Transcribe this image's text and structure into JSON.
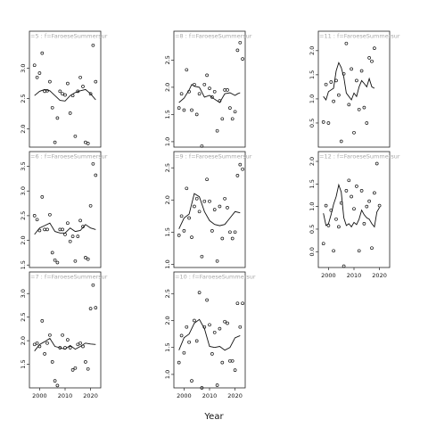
{
  "figure": {
    "xlabel": "Year"
  },
  "chart_data": [
    {
      "type": "scatter",
      "strip": "=5 : f=FaroeseSummersur",
      "panel_index": 0,
      "ylim": [
        1.7,
        3.45
      ],
      "yticks": [
        2.0,
        2.5,
        3.0
      ],
      "xlim": [
        1996,
        2024
      ],
      "show_xaxis": false,
      "points": [
        [
          1998,
          3.05
        ],
        [
          1999,
          2.85
        ],
        [
          2000,
          2.92
        ],
        [
          2001,
          3.25
        ],
        [
          2002,
          2.62
        ],
        [
          2003,
          2.63
        ],
        [
          2004,
          2.78
        ],
        [
          2005,
          2.35
        ],
        [
          2006,
          1.78
        ],
        [
          2007,
          2.18
        ],
        [
          2008,
          2.62
        ],
        [
          2009,
          2.58
        ],
        [
          2010,
          2.56
        ],
        [
          2011,
          2.75
        ],
        [
          2012,
          2.26
        ],
        [
          2013,
          2.55
        ],
        [
          2014,
          1.88
        ],
        [
          2015,
          2.62
        ],
        [
          2016,
          2.85
        ],
        [
          2017,
          2.7
        ],
        [
          2018,
          1.78
        ],
        [
          2019,
          1.76
        ],
        [
          2020,
          2.58
        ],
        [
          2021,
          3.38
        ],
        [
          2022,
          2.78
        ]
      ],
      "line": [
        [
          1998,
          2.55
        ],
        [
          2000,
          2.62
        ],
        [
          2002,
          2.65
        ],
        [
          2004,
          2.63
        ],
        [
          2006,
          2.55
        ],
        [
          2008,
          2.47
        ],
        [
          2010,
          2.46
        ],
        [
          2012,
          2.55
        ],
        [
          2014,
          2.6
        ],
        [
          2016,
          2.63
        ],
        [
          2018,
          2.65
        ],
        [
          2020,
          2.58
        ],
        [
          2022,
          2.48
        ]
      ]
    },
    {
      "type": "scatter",
      "strip": "=6 : f=FaroeseSummersur",
      "panel_index": 1,
      "ylim": [
        1.45,
        3.6
      ],
      "yticks": [
        1.5,
        2.0,
        2.5,
        3.0,
        3.5
      ],
      "xlim": [
        1996,
        2024
      ],
      "show_xaxis": false,
      "points": [
        [
          1998,
          2.5
        ],
        [
          1999,
          2.42
        ],
        [
          2000,
          2.2
        ],
        [
          2001,
          2.88
        ],
        [
          2002,
          2.22
        ],
        [
          2003,
          2.22
        ],
        [
          2004,
          2.52
        ],
        [
          2005,
          1.75
        ],
        [
          2006,
          1.6
        ],
        [
          2007,
          1.55
        ],
        [
          2008,
          2.22
        ],
        [
          2009,
          2.22
        ],
        [
          2010,
          2.12
        ],
        [
          2011,
          2.35
        ],
        [
          2012,
          1.98
        ],
        [
          2013,
          2.08
        ],
        [
          2014,
          1.58
        ],
        [
          2015,
          2.08
        ],
        [
          2016,
          2.4
        ],
        [
          2017,
          2.28
        ],
        [
          2018,
          1.65
        ],
        [
          2019,
          1.62
        ],
        [
          2020,
          2.7
        ],
        [
          2021,
          3.55
        ],
        [
          2022,
          3.32
        ]
      ],
      "line": [
        [
          1998,
          2.12
        ],
        [
          2000,
          2.25
        ],
        [
          2002,
          2.3
        ],
        [
          2004,
          2.35
        ],
        [
          2006,
          2.18
        ],
        [
          2008,
          2.15
        ],
        [
          2010,
          2.15
        ],
        [
          2012,
          2.25
        ],
        [
          2014,
          2.18
        ],
        [
          2016,
          2.2
        ],
        [
          2018,
          2.32
        ],
        [
          2020,
          2.25
        ],
        [
          2022,
          2.22
        ]
      ]
    },
    {
      "type": "scatter",
      "strip": "=7 : f=FaroeseSummersur",
      "panel_index": 2,
      "ylim": [
        1.0,
        3.25
      ],
      "yticks": [
        1.5,
        2.0,
        2.5,
        3.0
      ],
      "xlim": [
        1996,
        2024
      ],
      "show_xaxis": true,
      "points": [
        [
          1998,
          1.92
        ],
        [
          1999,
          1.95
        ],
        [
          2000,
          1.88
        ],
        [
          2001,
          2.42
        ],
        [
          2002,
          1.72
        ],
        [
          2003,
          1.95
        ],
        [
          2004,
          2.12
        ],
        [
          2005,
          1.55
        ],
        [
          2006,
          1.15
        ],
        [
          2007,
          1.05
        ],
        [
          2008,
          1.85
        ],
        [
          2009,
          2.12
        ],
        [
          2010,
          1.85
        ],
        [
          2011,
          2.02
        ],
        [
          2012,
          1.85
        ],
        [
          2013,
          1.38
        ],
        [
          2014,
          1.42
        ],
        [
          2015,
          1.92
        ],
        [
          2016,
          1.95
        ],
        [
          2017,
          1.88
        ],
        [
          2018,
          1.55
        ],
        [
          2019,
          1.4
        ],
        [
          2020,
          2.68
        ],
        [
          2021,
          3.18
        ],
        [
          2022,
          2.7
        ]
      ],
      "line": [
        [
          1998,
          1.78
        ],
        [
          2000,
          1.92
        ],
        [
          2002,
          1.98
        ],
        [
          2004,
          2.05
        ],
        [
          2006,
          1.88
        ],
        [
          2008,
          1.85
        ],
        [
          2010,
          1.82
        ],
        [
          2012,
          1.9
        ],
        [
          2014,
          1.82
        ],
        [
          2016,
          1.88
        ],
        [
          2018,
          1.95
        ],
        [
          2020,
          1.93
        ],
        [
          2022,
          1.92
        ]
      ]
    },
    {
      "type": "scatter",
      "strip": "=8 : f=FaroeseSummersur",
      "panel_index": 3,
      "ylim": [
        0.9,
        2.85
      ],
      "yticks": [
        1.0,
        1.5,
        2.0,
        2.5
      ],
      "xlim": [
        1996,
        2024
      ],
      "show_xaxis": false,
      "points": [
        [
          1998,
          1.62
        ],
        [
          1999,
          1.88
        ],
        [
          2000,
          1.58
        ],
        [
          2001,
          2.32
        ],
        [
          2002,
          1.92
        ],
        [
          2003,
          1.58
        ],
        [
          2004,
          2.05
        ],
        [
          2005,
          1.5
        ],
        [
          2006,
          1.88
        ],
        [
          2007,
          0.92
        ],
        [
          2008,
          2.05
        ],
        [
          2009,
          2.22
        ],
        [
          2010,
          1.98
        ],
        [
          2011,
          1.82
        ],
        [
          2012,
          1.92
        ],
        [
          2013,
          1.2
        ],
        [
          2014,
          1.75
        ],
        [
          2015,
          1.42
        ],
        [
          2016,
          1.95
        ],
        [
          2017,
          1.95
        ],
        [
          2018,
          1.62
        ],
        [
          2019,
          1.42
        ],
        [
          2020,
          1.55
        ],
        [
          2021,
          2.68
        ],
        [
          2022,
          2.82
        ],
        [
          2023,
          2.52
        ]
      ],
      "line": [
        [
          1998,
          1.72
        ],
        [
          2000,
          1.8
        ],
        [
          2002,
          1.95
        ],
        [
          2003,
          2.05
        ],
        [
          2004,
          2.02
        ],
        [
          2006,
          2.0
        ],
        [
          2008,
          1.82
        ],
        [
          2010,
          1.85
        ],
        [
          2012,
          1.78
        ],
        [
          2014,
          1.72
        ],
        [
          2016,
          1.88
        ],
        [
          2018,
          1.9
        ],
        [
          2020,
          1.85
        ],
        [
          2021,
          1.88
        ],
        [
          2022,
          1.9
        ]
      ]
    },
    {
      "type": "scatter",
      "strip": "=9 : f=FaroeseSummersur",
      "panel_index": 4,
      "ylim": [
        0.95,
        2.6
      ],
      "yticks": [
        1.0,
        1.5,
        2.0,
        2.5
      ],
      "xlim": [
        1996,
        2024
      ],
      "show_xaxis": false,
      "points": [
        [
          1998,
          1.45
        ],
        [
          1999,
          1.75
        ],
        [
          2000,
          1.52
        ],
        [
          2001,
          2.18
        ],
        [
          2002,
          1.72
        ],
        [
          2003,
          1.42
        ],
        [
          2004,
          1.9
        ],
        [
          2005,
          2.02
        ],
        [
          2006,
          1.82
        ],
        [
          2007,
          1.12
        ],
        [
          2008,
          1.98
        ],
        [
          2009,
          2.32
        ],
        [
          2010,
          1.98
        ],
        [
          2011,
          1.52
        ],
        [
          2012,
          1.85
        ],
        [
          2013,
          1.05
        ],
        [
          2014,
          1.9
        ],
        [
          2015,
          1.4
        ],
        [
          2016,
          2.02
        ],
        [
          2017,
          1.88
        ],
        [
          2018,
          1.5
        ],
        [
          2019,
          1.4
        ],
        [
          2020,
          1.5
        ],
        [
          2021,
          2.38
        ],
        [
          2022,
          2.55
        ],
        [
          2023,
          2.48
        ]
      ],
      "line": [
        [
          1998,
          1.55
        ],
        [
          2000,
          1.72
        ],
        [
          2002,
          1.78
        ],
        [
          2004,
          2.1
        ],
        [
          2006,
          2.05
        ],
        [
          2008,
          1.82
        ],
        [
          2010,
          1.68
        ],
        [
          2012,
          1.62
        ],
        [
          2014,
          1.6
        ],
        [
          2016,
          1.62
        ],
        [
          2018,
          1.72
        ],
        [
          2020,
          1.82
        ],
        [
          2022,
          1.8
        ]
      ]
    },
    {
      "type": "scatter",
      "strip": "=10 : f=FaroeseSummersur",
      "panel_index": 5,
      "ylim": [
        0.75,
        2.72
      ],
      "yticks": [
        1.0,
        1.5,
        2.0,
        2.5
      ],
      "xlim": [
        1996,
        2024
      ],
      "show_xaxis": true,
      "points": [
        [
          1998,
          1.22
        ],
        [
          1999,
          1.72
        ],
        [
          2000,
          1.4
        ],
        [
          2001,
          1.88
        ],
        [
          2002,
          1.6
        ],
        [
          2003,
          0.88
        ],
        [
          2004,
          2.0
        ],
        [
          2005,
          1.62
        ],
        [
          2006,
          2.52
        ],
        [
          2007,
          0.75
        ],
        [
          2008,
          1.88
        ],
        [
          2009,
          2.38
        ],
        [
          2010,
          1.92
        ],
        [
          2011,
          1.38
        ],
        [
          2012,
          1.78
        ],
        [
          2013,
          0.8
        ],
        [
          2014,
          1.85
        ],
        [
          2015,
          1.22
        ],
        [
          2016,
          1.98
        ],
        [
          2017,
          1.95
        ],
        [
          2018,
          1.25
        ],
        [
          2019,
          1.25
        ],
        [
          2020,
          1.08
        ],
        [
          2021,
          2.32
        ],
        [
          2022,
          1.88
        ],
        [
          2023,
          2.32
        ]
      ],
      "line": [
        [
          1998,
          1.45
        ],
        [
          2000,
          1.68
        ],
        [
          2002,
          1.75
        ],
        [
          2004,
          1.95
        ],
        [
          2006,
          2.02
        ],
        [
          2008,
          1.85
        ],
        [
          2010,
          1.52
        ],
        [
          2012,
          1.5
        ],
        [
          2014,
          1.52
        ],
        [
          2016,
          1.45
        ],
        [
          2018,
          1.5
        ],
        [
          2020,
          1.68
        ],
        [
          2022,
          1.72
        ]
      ]
    },
    {
      "type": "scatter",
      "strip": "=11 : f=FaroeseSummersur",
      "panel_index": 6,
      "ylim": [
        0.0,
        2.2
      ],
      "yticks": [
        0.5,
        1.0,
        1.5,
        2.0
      ],
      "xlim": [
        1996,
        2024
      ],
      "show_xaxis": false,
      "points": [
        [
          1998,
          0.52
        ],
        [
          1999,
          1.3
        ],
        [
          2000,
          0.5
        ],
        [
          2001,
          1.35
        ],
        [
          2002,
          0.95
        ],
        [
          2003,
          1.38
        ],
        [
          2004,
          1.08
        ],
        [
          2005,
          0.12
        ],
        [
          2006,
          1.52
        ],
        [
          2007,
          2.15
        ],
        [
          2008,
          0.88
        ],
        [
          2009,
          1.62
        ],
        [
          2010,
          0.3
        ],
        [
          2011,
          1.38
        ],
        [
          2012,
          0.78
        ],
        [
          2013,
          1.58
        ],
        [
          2014,
          0.82
        ],
        [
          2015,
          0.5
        ],
        [
          2016,
          1.85
        ],
        [
          2017,
          1.78
        ],
        [
          2018,
          2.05
        ]
      ],
      "line": [
        [
          1998,
          1.05
        ],
        [
          1999,
          0.98
        ],
        [
          2000,
          1.15
        ],
        [
          2002,
          1.22
        ],
        [
          2003,
          1.58
        ],
        [
          2004,
          1.75
        ],
        [
          2005,
          1.65
        ],
        [
          2006,
          1.45
        ],
        [
          2007,
          1.12
        ],
        [
          2008,
          1.05
        ],
        [
          2009,
          0.98
        ],
        [
          2010,
          1.12
        ],
        [
          2011,
          1.05
        ],
        [
          2012,
          1.25
        ],
        [
          2013,
          1.38
        ],
        [
          2014,
          1.32
        ],
        [
          2015,
          1.25
        ],
        [
          2016,
          1.42
        ],
        [
          2017,
          1.25
        ],
        [
          2018,
          1.22
        ]
      ]
    },
    {
      "type": "scatter",
      "strip": "=12 : f=FaroeseSummersur",
      "panel_index": 7,
      "ylim": [
        -0.35,
        2.0
      ],
      "yticks": [
        0.0,
        0.5,
        1.0,
        1.5,
        2.0
      ],
      "xlim": [
        1996,
        2024
      ],
      "show_xaxis": true,
      "points": [
        [
          1998,
          0.18
        ],
        [
          1999,
          1.02
        ],
        [
          2000,
          0.58
        ],
        [
          2001,
          0.92
        ],
        [
          2002,
          0.02
        ],
        [
          2003,
          0.72
        ],
        [
          2004,
          0.55
        ],
        [
          2005,
          1.08
        ],
        [
          2006,
          -0.32
        ],
        [
          2007,
          1.35
        ],
        [
          2008,
          1.58
        ],
        [
          2009,
          1.22
        ],
        [
          2010,
          0.95
        ],
        [
          2011,
          1.45
        ],
        [
          2012,
          0.02
        ],
        [
          2013,
          1.35
        ],
        [
          2014,
          0.62
        ],
        [
          2015,
          1.0
        ],
        [
          2016,
          1.12
        ],
        [
          2017,
          0.08
        ],
        [
          2018,
          1.3
        ],
        [
          2019,
          1.95
        ],
        [
          2020,
          1.02
        ]
      ],
      "line": [
        [
          1998,
          0.85
        ],
        [
          1999,
          0.58
        ],
        [
          2000,
          0.62
        ],
        [
          2001,
          0.82
        ],
        [
          2002,
          1.05
        ],
        [
          2003,
          1.22
        ],
        [
          2004,
          1.48
        ],
        [
          2005,
          1.32
        ],
        [
          2006,
          0.75
        ],
        [
          2007,
          0.58
        ],
        [
          2008,
          0.62
        ],
        [
          2009,
          0.55
        ],
        [
          2010,
          0.65
        ],
        [
          2011,
          0.6
        ],
        [
          2012,
          0.72
        ],
        [
          2013,
          0.92
        ],
        [
          2014,
          0.82
        ],
        [
          2015,
          0.75
        ],
        [
          2016,
          0.72
        ],
        [
          2017,
          0.62
        ],
        [
          2018,
          0.55
        ],
        [
          2019,
          0.88
        ],
        [
          2020,
          0.98
        ]
      ]
    }
  ]
}
